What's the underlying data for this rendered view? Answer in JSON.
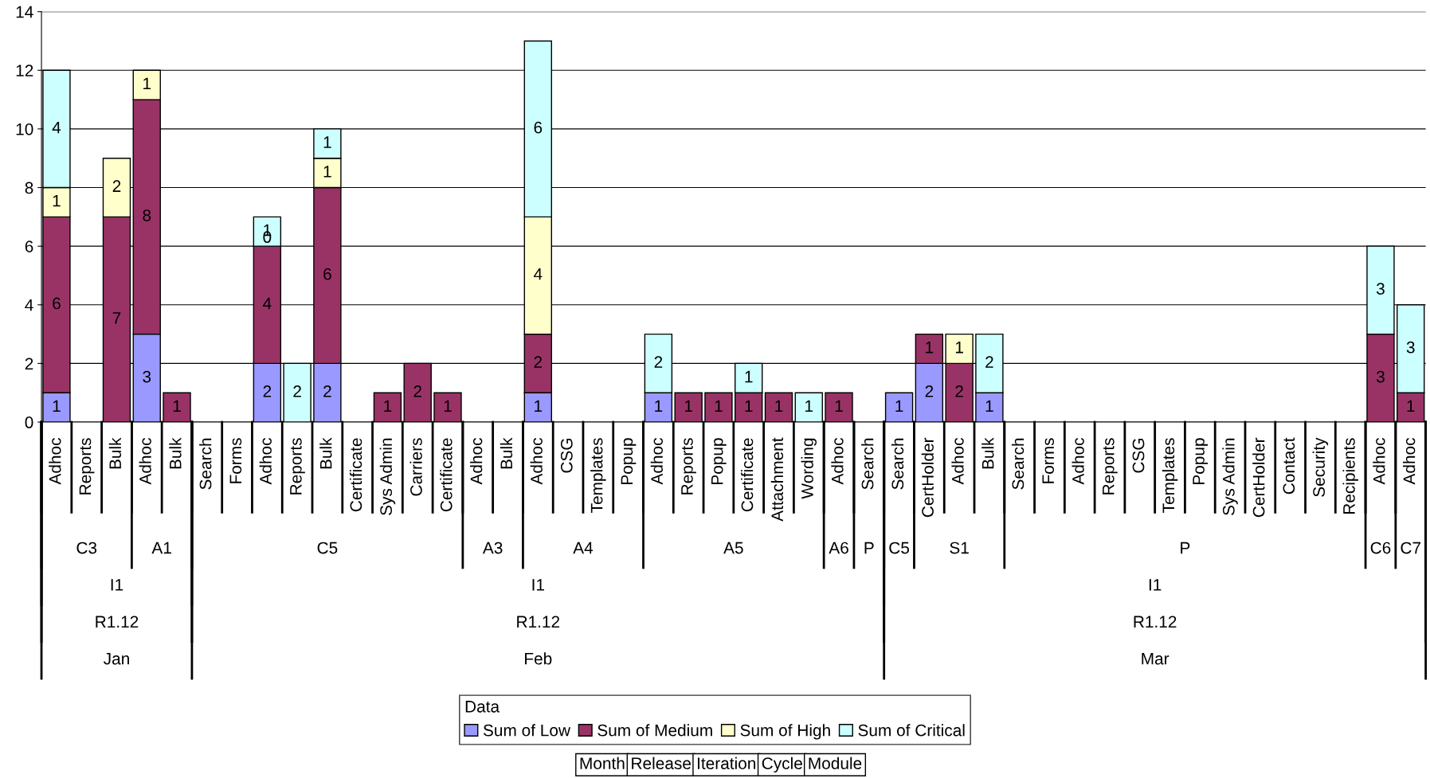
{
  "chart_data": {
    "type": "bar",
    "stacked": true,
    "data_labels": true,
    "grid": "y",
    "legend": "bottom",
    "legend_title": "Data",
    "categories": [
      "Adhoc",
      "Reports",
      "Bulk",
      "Adhoc",
      "Bulk",
      "Search",
      "Forms",
      "Adhoc",
      "Reports",
      "Bulk",
      "Certificate",
      "Sys Admin",
      "Carriers",
      "Certificate",
      "Adhoc",
      "Bulk",
      "Adhoc",
      "CSG",
      "Templates",
      "Popup",
      "Adhoc",
      "Reports",
      "Popup",
      "Certificate",
      "Attachment",
      "Wording",
      "Adhoc",
      "Search",
      "Search",
      "CertHolder",
      "Adhoc",
      "Bulk",
      "Search",
      "Forms",
      "Adhoc",
      "Reports",
      "CSG",
      "Templates",
      "Popup",
      "Sys Admin",
      "CertHolder",
      "Contact",
      "Security",
      "Recipients",
      "Adhoc",
      "Adhoc"
    ],
    "series": [
      {
        "name": "Sum of Low",
        "color": "#9999ff",
        "values": [
          1,
          null,
          null,
          3,
          null,
          null,
          null,
          2,
          null,
          2,
          null,
          null,
          null,
          null,
          null,
          null,
          1,
          null,
          null,
          null,
          1,
          null,
          null,
          null,
          null,
          null,
          null,
          null,
          1,
          2,
          null,
          1,
          null,
          null,
          null,
          null,
          null,
          null,
          null,
          null,
          null,
          null,
          null,
          null,
          null,
          null
        ]
      },
      {
        "name": "Sum of Medium",
        "color": "#993366",
        "values": [
          6,
          null,
          7,
          8,
          1,
          null,
          null,
          4,
          null,
          6,
          null,
          1,
          2,
          1,
          null,
          null,
          2,
          null,
          null,
          null,
          null,
          1,
          1,
          1,
          1,
          null,
          1,
          null,
          null,
          1,
          2,
          null,
          null,
          null,
          null,
          null,
          null,
          null,
          null,
          null,
          null,
          null,
          null,
          null,
          3,
          1
        ]
      },
      {
        "name": "Sum of High",
        "color": "#ffffcc",
        "values": [
          1,
          null,
          2,
          1,
          null,
          null,
          null,
          0,
          null,
          1,
          null,
          null,
          null,
          null,
          null,
          null,
          4,
          null,
          null,
          null,
          null,
          null,
          null,
          null,
          null,
          null,
          null,
          null,
          null,
          null,
          1,
          null,
          null,
          null,
          null,
          null,
          null,
          null,
          null,
          null,
          null,
          null,
          null,
          null,
          null,
          null
        ]
      },
      {
        "name": "Sum of Critical",
        "color": "#ccffff",
        "values": [
          4,
          null,
          null,
          null,
          null,
          null,
          null,
          1,
          2,
          1,
          null,
          null,
          null,
          null,
          null,
          null,
          6,
          null,
          null,
          null,
          2,
          null,
          null,
          1,
          null,
          1,
          null,
          null,
          null,
          null,
          null,
          2,
          null,
          null,
          null,
          null,
          null,
          null,
          null,
          null,
          null,
          null,
          null,
          null,
          3,
          3
        ]
      }
    ],
    "ylim": [
      0,
      14
    ],
    "yticks": [
      0,
      2,
      4,
      6,
      8,
      10,
      12,
      14
    ],
    "annotations": [
      "C3",
      "A1",
      "C5",
      "A3",
      "A4",
      "A5",
      "A6",
      "P",
      "C5",
      "S1",
      "P",
      "C6",
      "C7",
      "I1",
      "I1",
      "I1",
      "R1.12",
      "R1.12",
      "R1.12",
      "Jan",
      "Feb",
      "Mar",
      "Month",
      "Release",
      "Iteration",
      "Cycle",
      "Module"
    ]
  }
}
